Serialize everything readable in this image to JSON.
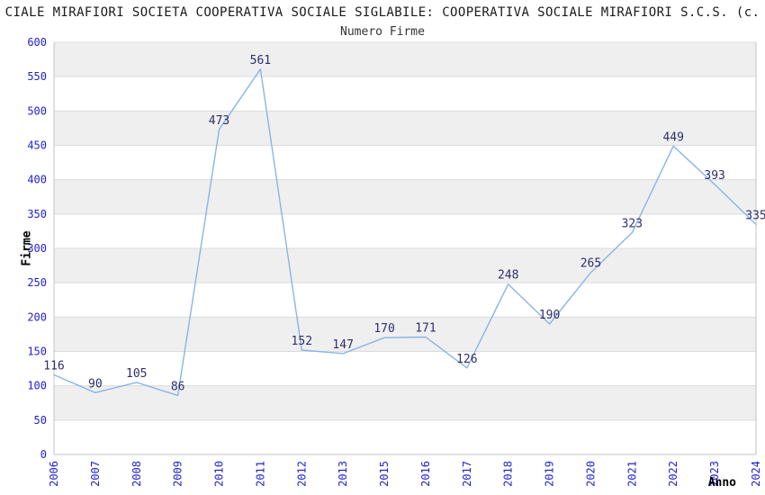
{
  "chart_data": {
    "type": "line",
    "title": "CIALE MIRAFIORI SOCIETA COOPERATIVA SOCIALE SIGLABILE: COOPERATIVA SOCIALE MIRAFIORI S.C.S. (c.",
    "subtitle": "Numero Firme",
    "xlabel": "Anno",
    "ylabel": "Firme",
    "categories": [
      "2006",
      "2007",
      "2008",
      "2009",
      "2010",
      "2011",
      "2012",
      "2013",
      "2015",
      "2016",
      "2017",
      "2018",
      "2019",
      "2020",
      "2021",
      "2022",
      "2023",
      "2024"
    ],
    "values": [
      116,
      90,
      105,
      86,
      473,
      561,
      152,
      147,
      170,
      171,
      126,
      248,
      190,
      265,
      323,
      449,
      393,
      335
    ],
    "ylim": [
      0,
      600
    ],
    "ytick_step": 50,
    "grid": true,
    "legend": false,
    "plot_bands_alternating": true,
    "colors": {
      "series_line": "#8ab4e8",
      "tick_label": "#2222cc",
      "data_label": "#2e2e6e",
      "band_gray": "#efefef",
      "gridline": "#dcdcdc",
      "plot_border": "#c6c6c6",
      "title_text": "#1a1a1a",
      "axis_title_text": "#000000",
      "background": "#ffffff"
    }
  }
}
